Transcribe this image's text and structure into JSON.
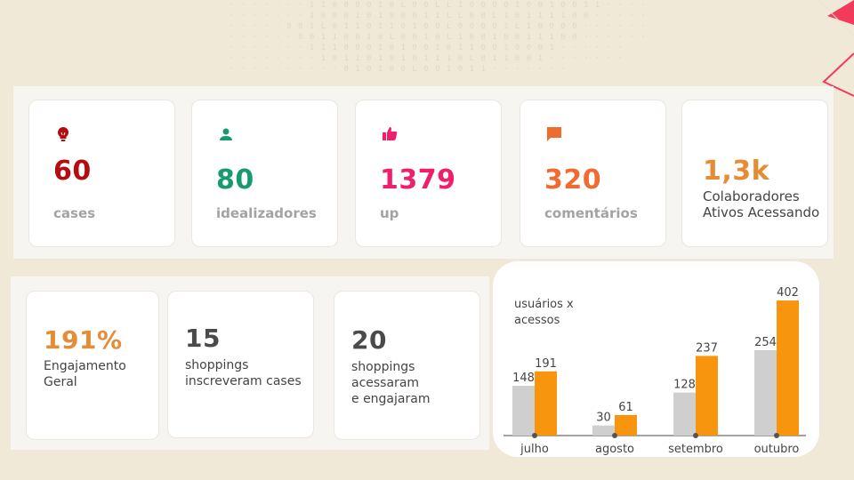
{
  "stats_top": [
    {
      "value": "60",
      "label": "cases",
      "color": "#b50d0d",
      "icon": "lightbulb-icon"
    },
    {
      "value": "80",
      "label": "idealizadores",
      "color": "#199a6e",
      "icon": "person-icon"
    },
    {
      "value": "1379",
      "label": "up",
      "color": "#ef1f6b",
      "icon": "thumbs-up-icon"
    },
    {
      "value": "320",
      "label": "comentários",
      "color": "#ef6b2f",
      "icon": "comment-icon"
    }
  ],
  "colaboradores": {
    "value": "1,3k",
    "label_line1": "Colaboradores",
    "label_line2": "Ativos Acessando",
    "color": "#e48c36"
  },
  "engajamento": {
    "value": "191%",
    "label_line1": "Engajamento",
    "label_line2": "Geral",
    "color": "#e48c36"
  },
  "shoppings_inscreveram": {
    "value": "15",
    "label_line1": "shoppings",
    "label_line2": "inscreveram cases",
    "color": "#4a4a4a"
  },
  "shoppings_acessaram": {
    "value": "20",
    "label_line1": "shoppings",
    "label_line2": "acessaram",
    "label_line3": "e engajaram",
    "color": "#4a4a4a"
  },
  "chart_data": {
    "type": "bar",
    "title": "usuários x acessos",
    "title_line1": "usuários x",
    "title_line2": "acessos",
    "categories": [
      "julho",
      "agosto",
      "setembro",
      "outubro"
    ],
    "series": [
      {
        "color": "#cfcfcf",
        "values": [
          148,
          30,
          128,
          254
        ]
      },
      {
        "color": "#f7950f",
        "values": [
          191,
          61,
          237,
          402
        ]
      }
    ],
    "ylim": [
      0,
      410
    ],
    "legend": "none",
    "grid": false
  }
}
